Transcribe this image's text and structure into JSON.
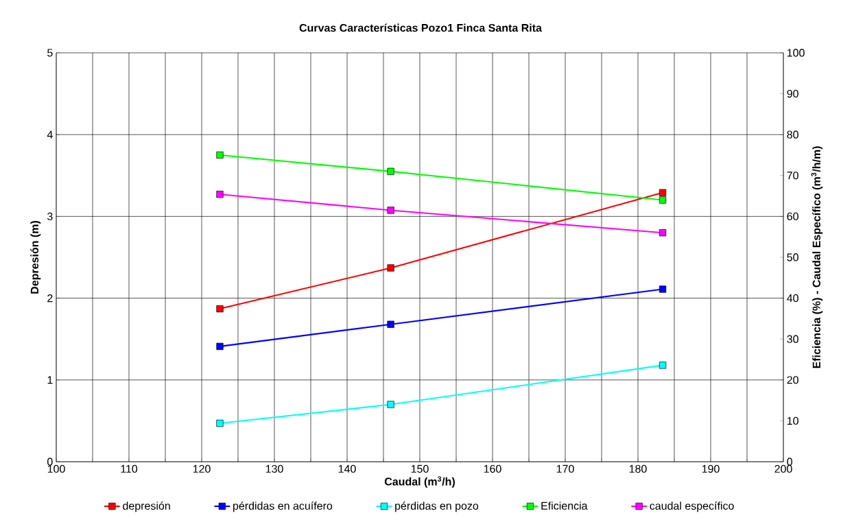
{
  "chart_data": {
    "type": "line",
    "title": "Curvas Características Pozo1 Finca Santa Rita",
    "xlabel": "Caudal (m$^{3}$/h)",
    "ylabel": "Depresión (m)",
    "y2label": "Eficiencia (%) - Caudal Específico (m$^{3}$/h/m)",
    "x": [
      122.5,
      146,
      183.4
    ],
    "series": [
      {
        "name": "depresión",
        "color": "#ff0000",
        "values": [
          1.87,
          2.37,
          3.29
        ]
      },
      {
        "name": "pérdidas en acuífero",
        "color": "#0000ff",
        "values": [
          1.41,
          1.68,
          2.11
        ]
      },
      {
        "name": "pérdidas en pozo",
        "color": "#00ffff",
        "values": [
          0.47,
          0.7,
          1.18
        ]
      },
      {
        "name": "Eficiencia",
        "color": "#00ff00",
        "values": [
          75,
          71,
          64
        ],
        "axis": "y2"
      },
      {
        "name": "caudal específico",
        "color": "#ff00ff",
        "values": [
          65.4,
          61.5,
          56
        ],
        "axis": "y2"
      }
    ],
    "xlim": [
      100,
      200
    ],
    "xticks": [
      100,
      {
        "value": 105,
        "label": null
      },
      110,
      {
        "value": 115,
        "label": null
      },
      120,
      {
        "value": 125,
        "label": null
      },
      130,
      {
        "value": 135,
        "label": null
      },
      140,
      {
        "value": 145,
        "label": null
      },
      150,
      {
        "value": 155,
        "label": null
      },
      160,
      {
        "value": 165,
        "label": null
      },
      170,
      {
        "value": 175,
        "label": null
      },
      180,
      {
        "value": 185,
        "label": null
      },
      190,
      {
        "value": 195,
        "label": null
      },
      200
    ],
    "ylim": [
      0,
      5
    ],
    "yticks": [
      0,
      1,
      2,
      3,
      4,
      5
    ],
    "y2lim": [
      0,
      100
    ],
    "y2ticks": [
      0,
      10,
      20,
      30,
      40,
      50,
      60,
      70,
      80,
      90,
      100
    ],
    "grid": true,
    "legend": "bottom",
    "marker": "square",
    "line_style": "solid"
  }
}
